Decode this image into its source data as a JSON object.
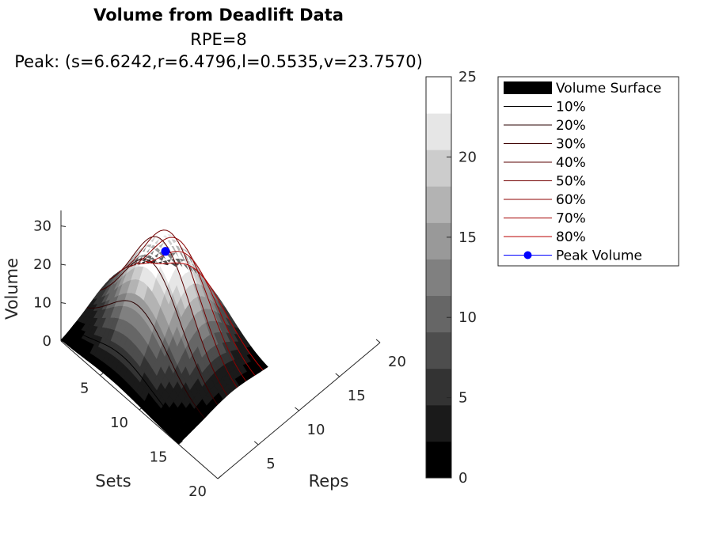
{
  "chart_data": {
    "type": "surface",
    "title": "Volume from Deadlift Data",
    "subtitle": "RPE=8",
    "peak_label": "Peak: (s=6.6242,r=6.4796,l=0.5535,v=23.7570)",
    "xlabel": "Reps",
    "ylabel": "Sets",
    "zlabel": "Volume",
    "xticks": [
      "5",
      "10",
      "15",
      "20"
    ],
    "yticks": [
      "5",
      "10",
      "15",
      "20"
    ],
    "zticks": [
      "0",
      "10",
      "20",
      "30"
    ],
    "xlim": [
      0,
      20
    ],
    "ylim": [
      0,
      20
    ],
    "zlim": [
      0,
      35
    ],
    "colorbar": {
      "ticks": [
        "0",
        "5",
        "10",
        "15",
        "20",
        "25"
      ],
      "range": [
        0,
        25
      ],
      "levels": 11,
      "colormap": "gray"
    },
    "peak": {
      "s": 6.6242,
      "r": 6.4796,
      "l": 0.5535,
      "v": 23.757
    },
    "contour_series": [
      "10%",
      "20%",
      "30%",
      "40%",
      "50%",
      "60%",
      "70%",
      "80%"
    ],
    "legend_position": "outside-right",
    "legend": [
      {
        "label": "Volume Surface",
        "kind": "patch",
        "color": "#000000"
      },
      {
        "label": "10%",
        "kind": "line",
        "color": "#000000"
      },
      {
        "label": "20%",
        "kind": "line",
        "color": "#2a0000"
      },
      {
        "label": "30%",
        "kind": "line",
        "color": "#3d0000"
      },
      {
        "label": "40%",
        "kind": "line",
        "color": "#5a0000"
      },
      {
        "label": "50%",
        "kind": "line",
        "color": "#730000"
      },
      {
        "label": "60%",
        "kind": "line",
        "color": "#8c0000"
      },
      {
        "label": "70%",
        "kind": "line",
        "color": "#a30000"
      },
      {
        "label": "80%",
        "kind": "line",
        "color": "#b80000"
      },
      {
        "label": "Peak Volume",
        "kind": "marker",
        "color": "#0000ff"
      }
    ]
  }
}
